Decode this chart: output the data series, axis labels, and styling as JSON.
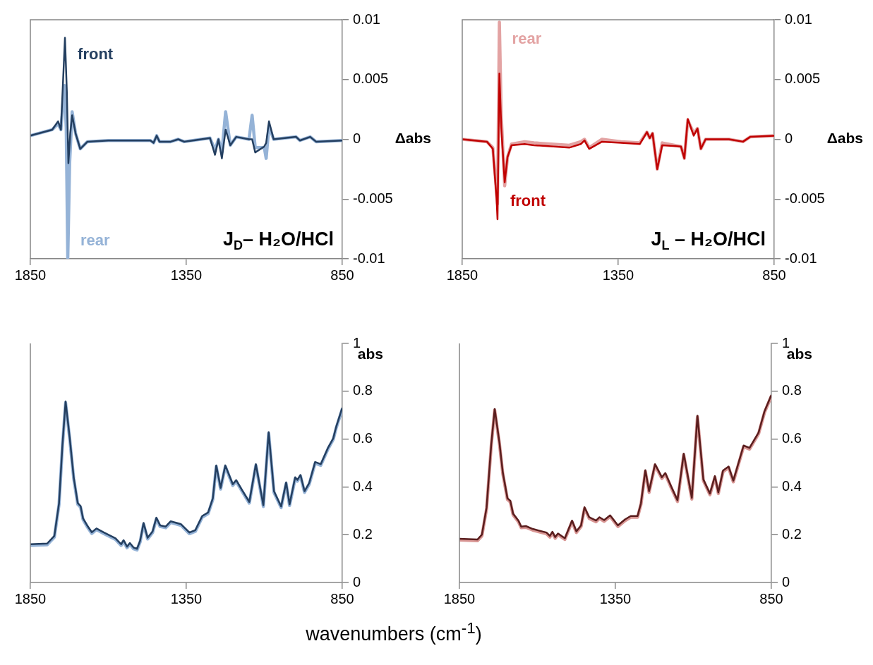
{
  "chart_data": [
    {
      "type": "line",
      "xlim": [
        1850,
        850
      ],
      "xticks": [
        1850,
        1350,
        850
      ],
      "ylim": [
        -0.01,
        0.01
      ],
      "yticks": [
        0.01,
        0.005,
        0,
        -0.005,
        -0.01
      ],
      "ylabel": "Δabs",
      "marker": "none",
      "annotations": [
        "J$_{D}$– H₂O/HCl"
      ],
      "series": [
        {
          "name": "rear",
          "color": "#95b3d7",
          "x": [
            1850,
            1780,
            1761,
            1752,
            1741,
            1735,
            1730,
            1724,
            1716,
            1705,
            1690,
            1667,
            1600,
            1465,
            1455,
            1445,
            1436,
            1400,
            1376,
            1357,
            1274,
            1258,
            1247,
            1236,
            1224,
            1209,
            1190,
            1149,
            1139,
            1129,
            1100,
            1094,
            1085,
            1070,
            998,
            986,
            953,
            934,
            850
          ],
          "values": [
            0.0003,
            0.0008,
            0.0013,
            0.0008,
            0.0045,
            0.001,
            -0.01,
            -0.002,
            0.0023,
            0.0005,
            -0.0008,
            -0.0002,
            -0.0001,
            -0.0001,
            -0.0003,
            0.0003,
            -0.0002,
            -0.0002,
            0,
            -0.0002,
            0.0001,
            -0.0009,
            0,
            -0.0011,
            0.0023,
            -0.0005,
            0.0002,
            0,
            0.002,
            -0.0007,
            -0.0007,
            -0.0016,
            0.0011,
            0,
            0.0002,
            -0.0001,
            0.0002,
            -0.0002,
            -0.0001
          ]
        },
        {
          "name": "front",
          "color": "#243f60",
          "x": [
            1850,
            1780,
            1761,
            1752,
            1739,
            1733,
            1728,
            1722,
            1716,
            1705,
            1690,
            1667,
            1600,
            1465,
            1455,
            1445,
            1436,
            1400,
            1376,
            1357,
            1274,
            1258,
            1247,
            1236,
            1224,
            1209,
            1190,
            1149,
            1139,
            1129,
            1100,
            1094,
            1085,
            1070,
            998,
            986,
            953,
            934,
            850
          ],
          "values": [
            0.0003,
            0.0008,
            0.0015,
            0.0008,
            0.0085,
            0.004,
            -0.002,
            0.0005,
            0.002,
            0.0005,
            -0.0008,
            -0.0002,
            -0.0001,
            -0.0001,
            -0.0003,
            0.0003,
            -0.0002,
            -0.0002,
            0,
            -0.0002,
            0.0001,
            -0.0013,
            0,
            -0.0016,
            0.0008,
            -0.0005,
            0.0002,
            0,
            0,
            -0.0011,
            -0.0006,
            -0.0003,
            0.0015,
            0,
            0.0002,
            -0.0001,
            0.0002,
            -0.0002,
            -0.0001
          ]
        }
      ]
    },
    {
      "type": "line",
      "xlim": [
        1850,
        850
      ],
      "xticks": [
        1850,
        1350,
        850
      ],
      "ylim": [
        -0.01,
        0.01
      ],
      "yticks": [
        0.01,
        0.005,
        0,
        -0.005,
        -0.01
      ],
      "ylabel": "Δabs",
      "marker": "none",
      "annotations": [
        "J$_{L}$ – H₂O/HCl"
      ],
      "series": [
        {
          "name": "rear",
          "color": "#e3a3a3",
          "x": [
            1850,
            1771,
            1752,
            1740,
            1737,
            1731,
            1725,
            1714,
            1705,
            1692,
            1650,
            1620,
            1507,
            1470,
            1458,
            1443,
            1402,
            1341,
            1281,
            1258,
            1249,
            1240,
            1225,
            1209,
            1149,
            1138,
            1127,
            1108,
            1096,
            1085,
            1070,
            995,
            950,
            927,
            850
          ],
          "values": [
            0,
            -0.0002,
            -0.0007,
            -0.0045,
            -0.0054,
            0.0098,
            0.002,
            -0.0039,
            -0.0015,
            -0.0004,
            -0.0002,
            -0.0003,
            -0.0005,
            -0.0002,
            0,
            -0.0007,
            0,
            -0.0002,
            -0.0003,
            0.0006,
            0.0001,
            0.0005,
            -0.0025,
            -0.0003,
            -0.0006,
            -0.0016,
            0.0016,
            0.0005,
            0.0009,
            -0.0008,
            0,
            0,
            -0.0002,
            0.0002,
            0.0003
          ]
        },
        {
          "name": "front",
          "color": "#c00000",
          "x": [
            1850,
            1771,
            1752,
            1740,
            1737,
            1731,
            1725,
            1714,
            1705,
            1692,
            1650,
            1620,
            1507,
            1470,
            1458,
            1443,
            1402,
            1341,
            1281,
            1258,
            1249,
            1240,
            1225,
            1209,
            1149,
            1138,
            1127,
            1108,
            1096,
            1085,
            1070,
            995,
            950,
            927,
            850
          ],
          "values": [
            0,
            -0.0002,
            -0.0008,
            -0.005,
            -0.0067,
            0.0055,
            0.001,
            -0.0036,
            -0.0015,
            -0.0005,
            -0.0004,
            -0.0005,
            -0.0007,
            -0.0004,
            -0.0001,
            -0.0008,
            -0.0002,
            -0.0003,
            -0.0004,
            0.0006,
            0.0001,
            0.0005,
            -0.0025,
            -0.0005,
            -0.0006,
            -0.0016,
            0.0017,
            0.0003,
            0.0009,
            -0.0008,
            0,
            0,
            -0.0002,
            0.0002,
            0.0003
          ]
        }
      ]
    },
    {
      "type": "line",
      "xlim": [
        1850,
        850
      ],
      "xticks": [
        1850,
        1350,
        850
      ],
      "ylim": [
        0,
        1
      ],
      "yticks": [
        1,
        0.8,
        0.6,
        0.4,
        0.2,
        0
      ],
      "ylabel": "abs",
      "xlabel": "wavenumbers (cm$^{-1}$)",
      "marker": "none",
      "series": [
        {
          "color": "#95b3d7",
          "x": [
            1850,
            1796,
            1773,
            1758,
            1747,
            1737,
            1724,
            1711,
            1698,
            1689,
            1681,
            1668,
            1653,
            1638,
            1615,
            1577,
            1559,
            1551,
            1540,
            1531,
            1519,
            1508,
            1498,
            1487,
            1474,
            1458,
            1446,
            1434,
            1416,
            1400,
            1367,
            1340,
            1321,
            1299,
            1280,
            1265,
            1254,
            1240,
            1225,
            1201,
            1190,
            1171,
            1148,
            1127,
            1103,
            1086,
            1069,
            1046,
            1030,
            1019,
            1001,
            994,
            984,
            971,
            956,
            937,
            919,
            896,
            879,
            870,
            850
          ],
          "values": [
            0.155,
            0.158,
            0.19,
            0.327,
            0.573,
            0.752,
            0.603,
            0.435,
            0.327,
            0.315,
            0.263,
            0.234,
            0.205,
            0.221,
            0.205,
            0.18,
            0.155,
            0.172,
            0.145,
            0.16,
            0.141,
            0.136,
            0.17,
            0.244,
            0.182,
            0.209,
            0.266,
            0.234,
            0.229,
            0.251,
            0.239,
            0.204,
            0.214,
            0.273,
            0.288,
            0.347,
            0.485,
            0.391,
            0.485,
            0.406,
            0.423,
            0.381,
            0.332,
            0.49,
            0.318,
            0.624,
            0.377,
            0.313,
            0.414,
            0.322,
            0.435,
            0.424,
            0.445,
            0.377,
            0.411,
            0.499,
            0.49,
            0.558,
            0.598,
            0.644,
            0.726
          ]
        },
        {
          "color": "#243f60",
          "x": [
            1850,
            1796,
            1773,
            1758,
            1747,
            1737,
            1724,
            1711,
            1698,
            1689,
            1681,
            1668,
            1653,
            1638,
            1615,
            1577,
            1559,
            1551,
            1540,
            1531,
            1519,
            1508,
            1498,
            1487,
            1474,
            1458,
            1446,
            1434,
            1416,
            1400,
            1367,
            1340,
            1321,
            1299,
            1280,
            1265,
            1254,
            1240,
            1225,
            1201,
            1190,
            1171,
            1148,
            1127,
            1103,
            1086,
            1069,
            1046,
            1030,
            1019,
            1001,
            994,
            984,
            971,
            956,
            937,
            919,
            896,
            879,
            870,
            850
          ],
          "values": [
            0.16,
            0.163,
            0.195,
            0.332,
            0.578,
            0.757,
            0.608,
            0.44,
            0.332,
            0.32,
            0.268,
            0.239,
            0.21,
            0.226,
            0.21,
            0.185,
            0.16,
            0.177,
            0.15,
            0.165,
            0.146,
            0.141,
            0.175,
            0.249,
            0.187,
            0.214,
            0.271,
            0.239,
            0.234,
            0.256,
            0.244,
            0.209,
            0.219,
            0.278,
            0.293,
            0.352,
            0.49,
            0.396,
            0.49,
            0.411,
            0.428,
            0.386,
            0.337,
            0.495,
            0.323,
            0.629,
            0.382,
            0.318,
            0.419,
            0.327,
            0.44,
            0.429,
            0.45,
            0.382,
            0.416,
            0.504,
            0.495,
            0.563,
            0.603,
            0.649,
            0.731
          ]
        }
      ]
    },
    {
      "type": "line",
      "xlim": [
        1850,
        850
      ],
      "xticks": [
        1850,
        1350,
        850
      ],
      "ylim": [
        0,
        1
      ],
      "yticks": [
        1,
        0.8,
        0.6,
        0.4,
        0.2,
        0
      ],
      "ylabel": "abs",
      "marker": "none",
      "series": [
        {
          "color": "#d99694",
          "x": [
            1850,
            1792,
            1778,
            1763,
            1748,
            1737,
            1722,
            1711,
            1696,
            1687,
            1678,
            1661,
            1652,
            1637,
            1615,
            1571,
            1560,
            1552,
            1543,
            1534,
            1512,
            1489,
            1475,
            1460,
            1449,
            1434,
            1412,
            1401,
            1386,
            1367,
            1342,
            1319,
            1301,
            1279,
            1268,
            1254,
            1242,
            1223,
            1201,
            1190,
            1171,
            1151,
            1131,
            1105,
            1087,
            1068,
            1047,
            1031,
            1020,
            1005,
            987,
            972,
            939,
            920,
            891,
            872,
            850
          ],
          "values": [
            0.178,
            0.175,
            0.195,
            0.308,
            0.573,
            0.721,
            0.583,
            0.455,
            0.347,
            0.337,
            0.283,
            0.254,
            0.229,
            0.231,
            0.219,
            0.204,
            0.19,
            0.207,
            0.185,
            0.2,
            0.18,
            0.254,
            0.209,
            0.234,
            0.31,
            0.268,
            0.254,
            0.268,
            0.256,
            0.276,
            0.234,
            0.259,
            0.273,
            0.273,
            0.327,
            0.465,
            0.377,
            0.49,
            0.435,
            0.453,
            0.396,
            0.339,
            0.534,
            0.349,
            0.693,
            0.426,
            0.367,
            0.44,
            0.372,
            0.463,
            0.48,
            0.421,
            0.568,
            0.558,
            0.622,
            0.711,
            0.78
          ]
        },
        {
          "color": "#5a1e1e",
          "x": [
            1850,
            1792,
            1778,
            1763,
            1748,
            1737,
            1722,
            1711,
            1696,
            1687,
            1678,
            1661,
            1652,
            1637,
            1615,
            1571,
            1560,
            1552,
            1543,
            1534,
            1512,
            1489,
            1475,
            1460,
            1449,
            1434,
            1412,
            1401,
            1386,
            1367,
            1342,
            1319,
            1301,
            1279,
            1268,
            1254,
            1242,
            1223,
            1201,
            1190,
            1171,
            1151,
            1131,
            1105,
            1087,
            1068,
            1047,
            1031,
            1020,
            1005,
            987,
            972,
            939,
            920,
            891,
            872,
            850
          ],
          "values": [
            0.183,
            0.18,
            0.2,
            0.313,
            0.578,
            0.726,
            0.588,
            0.46,
            0.352,
            0.342,
            0.288,
            0.259,
            0.234,
            0.236,
            0.224,
            0.209,
            0.195,
            0.212,
            0.19,
            0.205,
            0.185,
            0.259,
            0.214,
            0.239,
            0.315,
            0.273,
            0.259,
            0.273,
            0.261,
            0.281,
            0.239,
            0.264,
            0.278,
            0.278,
            0.332,
            0.47,
            0.382,
            0.495,
            0.44,
            0.458,
            0.401,
            0.344,
            0.539,
            0.354,
            0.698,
            0.431,
            0.372,
            0.445,
            0.377,
            0.468,
            0.485,
            0.426,
            0.573,
            0.563,
            0.627,
            0.716,
            0.785
          ]
        }
      ]
    }
  ]
}
